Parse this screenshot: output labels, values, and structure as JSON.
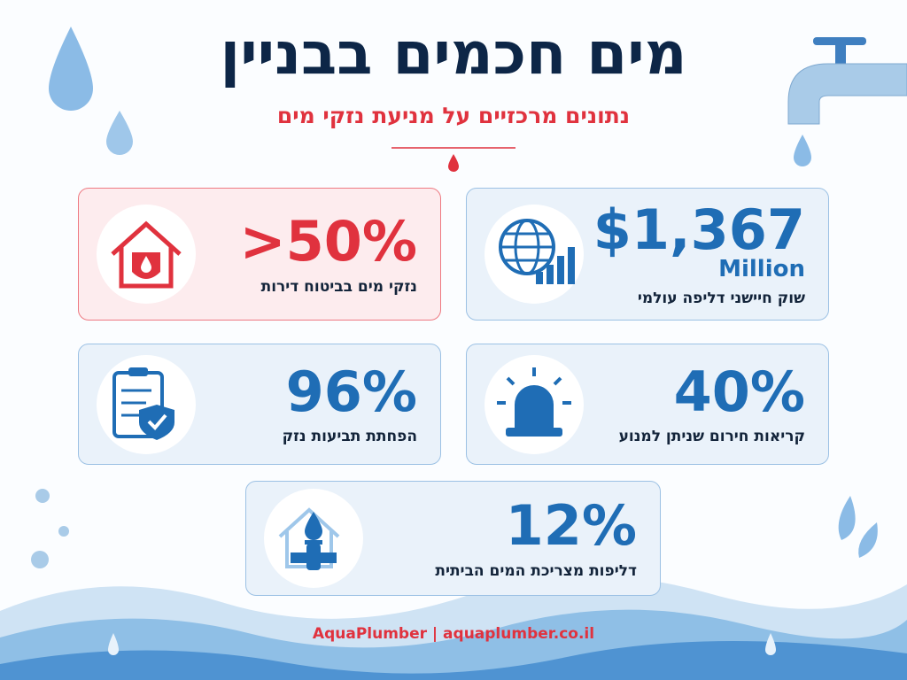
{
  "header": {
    "title": "מים חכמים בבניין",
    "subtitle": "נתונים מרכזיים על מניעת נזקי מים"
  },
  "cards": [
    {
      "value": ">50%",
      "label": "נזקי מים בביטוח דירות"
    },
    {
      "value": "$1,367",
      "unit": "Million",
      "label": "שוק חיישני דליפה עולמי"
    },
    {
      "value": "96%",
      "label": "הפחתת תביעות נזק"
    },
    {
      "value": "40%",
      "label": "קריאות חירום שניתן למנוע"
    },
    {
      "value": "12%",
      "label": "דליפות מצריכת המים הביתית"
    }
  ],
  "footer": {
    "text": "AquaPlumber | aquaplumber.co.il"
  }
}
